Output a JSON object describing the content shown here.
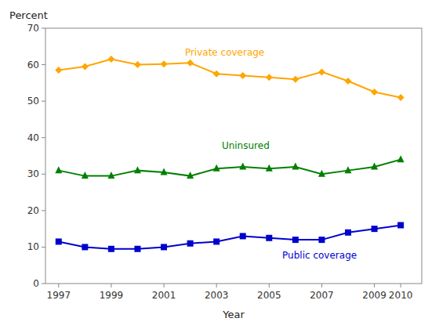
{
  "chart_data": {
    "type": "line",
    "x": [
      1997,
      1998,
      1999,
      2000,
      2001,
      2002,
      2003,
      2004,
      2005,
      2006,
      2007,
      2008,
      2009,
      2010
    ],
    "series": [
      {
        "color": "#FFA500",
        "marker": "diamond",
        "values": [
          58.5,
          59.5,
          61.5,
          60.0,
          60.2,
          60.5,
          57.5,
          57.0,
          56.5,
          56.0,
          58.0,
          55.5,
          52.5,
          51.0
        ]
      },
      {
        "color": "#008000",
        "marker": "triangle",
        "values": [
          31.0,
          29.5,
          29.5,
          31.0,
          30.5,
          29.5,
          31.5,
          32.0,
          31.5,
          32.0,
          30.0,
          31.0,
          32.0,
          34.0
        ]
      },
      {
        "color": "#0000CD",
        "marker": "square",
        "values": [
          11.5,
          10.0,
          9.5,
          9.5,
          10.0,
          11.0,
          11.5,
          13.0,
          12.5,
          12.0,
          12.0,
          14.0,
          15.0,
          16.0
        ]
      }
    ],
    "annotations": [
      {
        "text": "Private coverage",
        "x": 2001.8,
        "y": 62.0,
        "color": "#FFA500"
      },
      {
        "text": "Uninsured",
        "x": 2003.2,
        "y": 36.5,
        "color": "#008000"
      },
      {
        "text": "Public coverage",
        "x": 2005.5,
        "y": 6.5,
        "color": "#0000CD"
      }
    ],
    "x_label": "Year",
    "y_label": "Percent",
    "xlim": [
      1996.5,
      2010.8
    ],
    "xticks": [
      1997,
      1999,
      2001,
      2003,
      2005,
      2007,
      2009,
      2010
    ],
    "ylim": [
      0,
      70
    ],
    "yticks": [
      0,
      10,
      20,
      30,
      40,
      50,
      60,
      70
    ],
    "grid": false
  }
}
